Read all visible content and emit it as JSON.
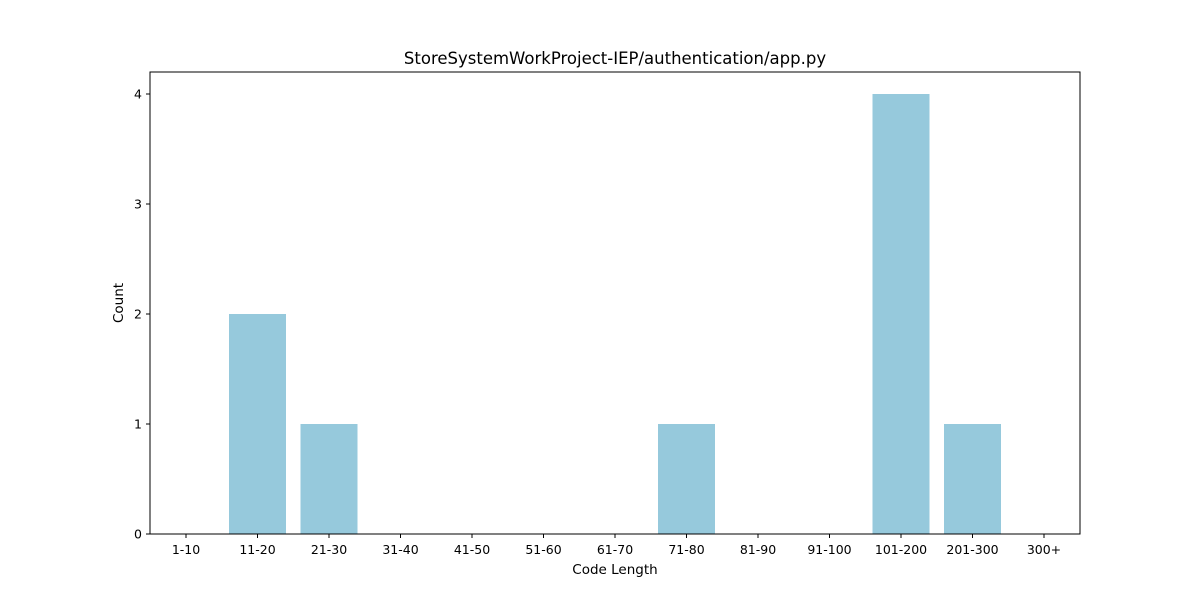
{
  "chart_data": {
    "type": "bar",
    "title": "StoreSystemWorkProject-IEP/authentication/app.py",
    "xlabel": "Code Length",
    "ylabel": "Count",
    "categories": [
      "1-10",
      "11-20",
      "21-30",
      "31-40",
      "41-50",
      "51-60",
      "61-70",
      "71-80",
      "81-90",
      "91-100",
      "101-200",
      "201-300",
      "300+"
    ],
    "values": [
      0,
      2,
      1,
      0,
      0,
      0,
      0,
      1,
      0,
      0,
      4,
      1,
      0
    ],
    "ylim": [
      0,
      4.2
    ],
    "yticks": [
      0,
      1,
      2,
      3,
      4
    ],
    "bar_color": "#96c9dc",
    "grid": false,
    "legend": "none"
  }
}
